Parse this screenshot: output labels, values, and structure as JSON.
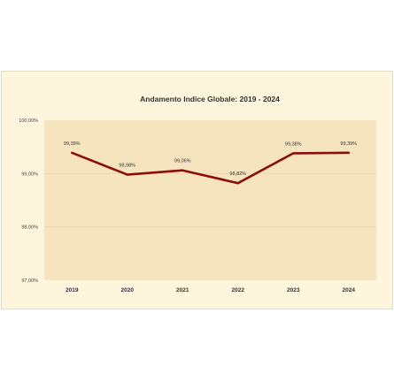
{
  "chart_data": {
    "type": "line",
    "title": "Andamento Indice Globale: 2019 - 2024",
    "categories": [
      "2019",
      "2020",
      "2021",
      "2022",
      "2023",
      "2024"
    ],
    "series": [
      {
        "values": [
          99.39,
          98.98,
          99.06,
          98.82,
          99.38,
          99.39
        ]
      }
    ],
    "data_labels": [
      "99,39%",
      "98,98%",
      "99,06%",
      "98,82%",
      "99,38%",
      "99,39%"
    ],
    "y_ticks": [
      {
        "value": 100,
        "label": "100,00%"
      },
      {
        "value": 99,
        "label": "99,00%"
      },
      {
        "value": 98,
        "label": "98,00%"
      },
      {
        "value": 97,
        "label": "97,00%"
      }
    ],
    "ylim": [
      97,
      100
    ],
    "grid": true,
    "legend": "none",
    "colors": {
      "line": "#8b0d0d",
      "plot_bg": "#f6e4bf",
      "frame_bg": "#fdf6dc",
      "grid": "#e8d7b2"
    }
  }
}
